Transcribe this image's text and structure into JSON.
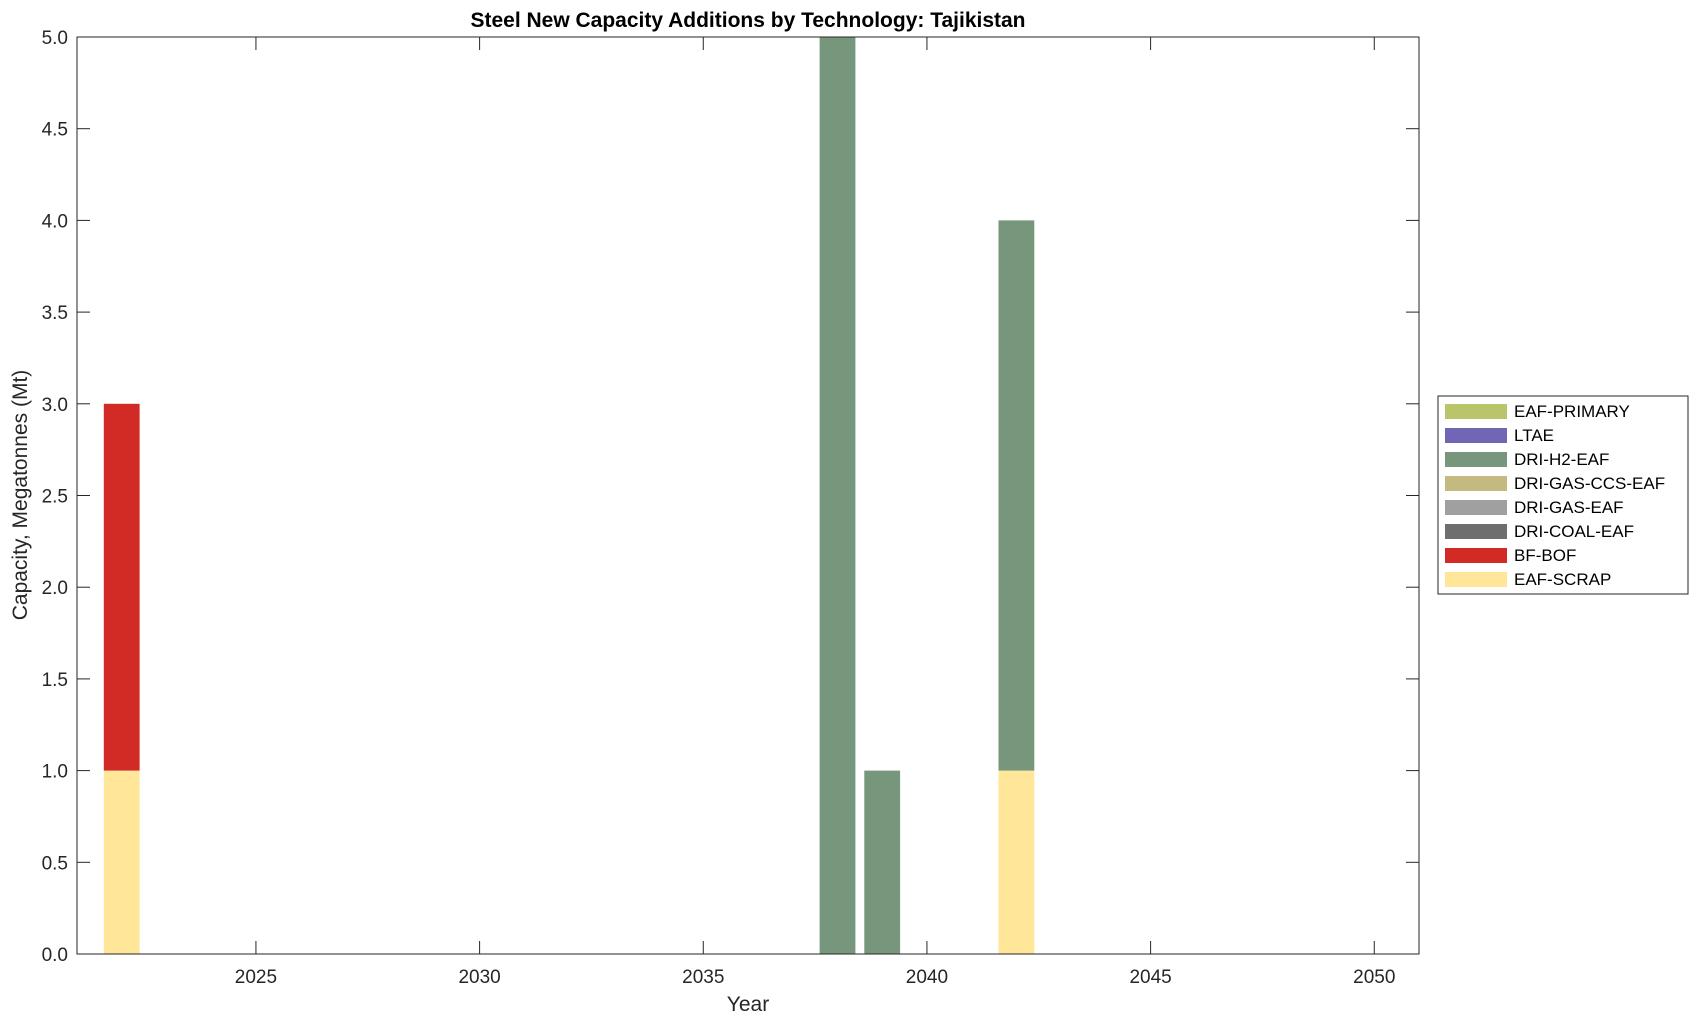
{
  "chart_data": {
    "type": "bar",
    "stacked": true,
    "title": "Steel New Capacity Additions by Technology: Tajikistan",
    "xlabel": "Year",
    "ylabel": "Capacity, Megatonnes (Mt)",
    "xlim": [
      2021,
      2051
    ],
    "ylim": [
      0,
      5
    ],
    "xticks": [
      2025,
      2030,
      2035,
      2040,
      2045,
      2050
    ],
    "xtick_labels": [
      "2025",
      "2030",
      "2035",
      "2040",
      "2045",
      "2050"
    ],
    "yticks": [
      0,
      0.5,
      1,
      1.5,
      2,
      2.5,
      3,
      3.5,
      4,
      4.5,
      5
    ],
    "ytick_labels": [
      "0.0",
      "0.5",
      "1.0",
      "1.5",
      "2.0",
      "2.5",
      "3.0",
      "3.5",
      "4.0",
      "4.5",
      "5.0"
    ],
    "grid": false,
    "legend_position": "right",
    "categories": [
      2022,
      2038,
      2039,
      2042
    ],
    "series": [
      {
        "name": "EAF-SCRAP",
        "color": "#FFE699",
        "values": [
          1,
          0,
          0,
          1
        ]
      },
      {
        "name": "BF-BOF",
        "color": "#D22B26",
        "values": [
          2,
          0,
          0,
          0
        ]
      },
      {
        "name": "DRI-COAL-EAF",
        "color": "#6E6E6E",
        "values": [
          0,
          0,
          0,
          0
        ]
      },
      {
        "name": "DRI-GAS-EAF",
        "color": "#A0A0A0",
        "values": [
          0,
          0,
          0,
          0
        ]
      },
      {
        "name": "DRI-GAS-CCS-EAF",
        "color": "#C4B97E",
        "values": [
          0,
          0,
          0,
          0
        ]
      },
      {
        "name": "DRI-H2-EAF",
        "color": "#76977C",
        "values": [
          0,
          5,
          1,
          3
        ]
      },
      {
        "name": "LTAE",
        "color": "#7066B5",
        "values": [
          0,
          0,
          0,
          0
        ]
      },
      {
        "name": "EAF-PRIMARY",
        "color": "#B9C46B",
        "values": [
          0,
          0,
          0,
          0
        ]
      }
    ],
    "legend_order": [
      "EAF-PRIMARY",
      "LTAE",
      "DRI-H2-EAF",
      "DRI-GAS-CCS-EAF",
      "DRI-GAS-EAF",
      "DRI-COAL-EAF",
      "BF-BOF",
      "EAF-SCRAP"
    ]
  }
}
